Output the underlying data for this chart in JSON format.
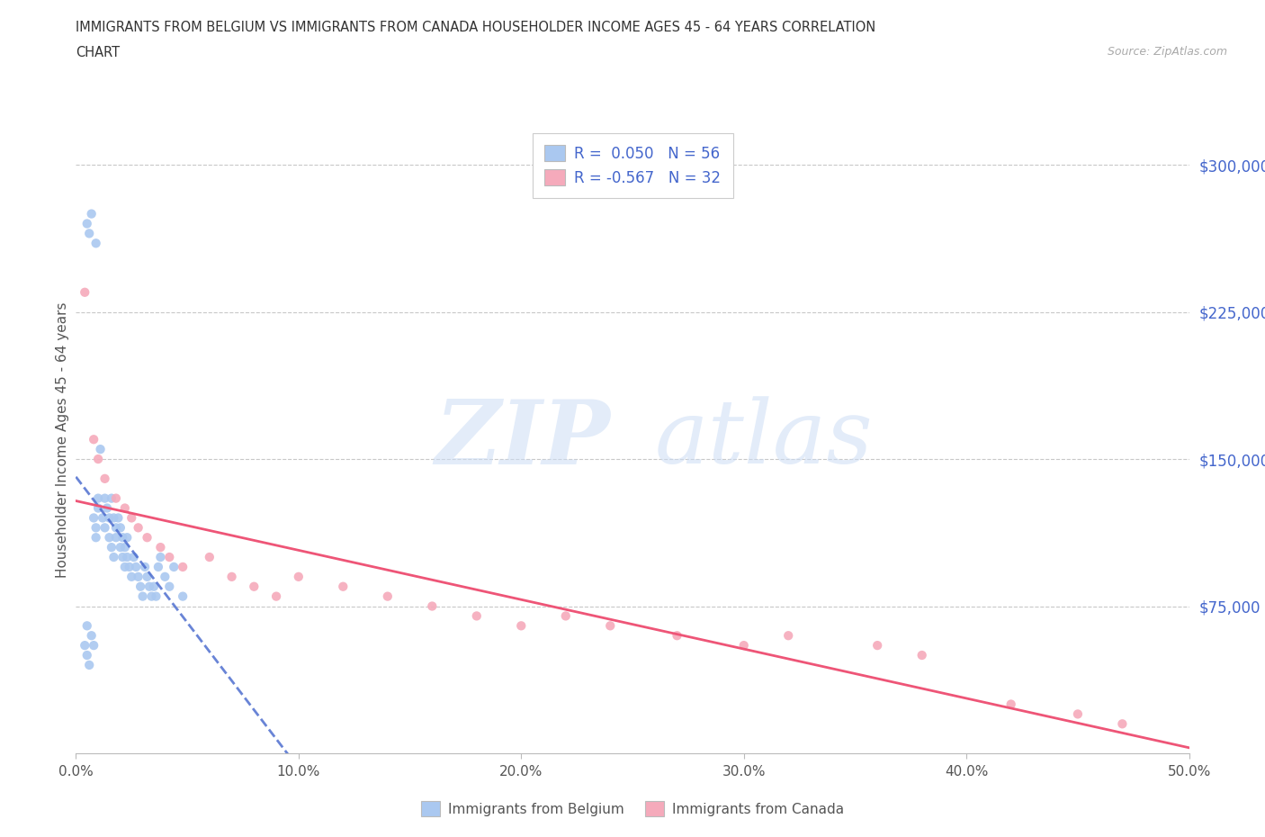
{
  "title_line1": "IMMIGRANTS FROM BELGIUM VS IMMIGRANTS FROM CANADA HOUSEHOLDER INCOME AGES 45 - 64 YEARS CORRELATION",
  "title_line2": "CHART",
  "source": "Source: ZipAtlas.com",
  "ylabel": "Householder Income Ages 45 - 64 years",
  "xlim": [
    0.0,
    0.5
  ],
  "ylim": [
    0,
    320000
  ],
  "xtick_labels": [
    "0.0%",
    "",
    "",
    "",
    "",
    "",
    "",
    "",
    "",
    "",
    "10.0%",
    "",
    "",
    "",
    "",
    "",
    "",
    "",
    "",
    "",
    "20.0%",
    "",
    "",
    "",
    "",
    "",
    "",
    "",
    "",
    "",
    "30.0%",
    "",
    "",
    "",
    "",
    "",
    "",
    "",
    "",
    "",
    "40.0%",
    "",
    "",
    "",
    "",
    "",
    "",
    "",
    "",
    "",
    "50.0%"
  ],
  "ytick_labels": [
    "$300,000",
    "$225,000",
    "$150,000",
    "$75,000"
  ],
  "ytick_vals": [
    300000,
    225000,
    150000,
    75000
  ],
  "grid_color": "#c8c8c8",
  "background_color": "#ffffff",
  "belgium_color": "#aac8f0",
  "canada_color": "#f5aabb",
  "belgium_line_color": "#4466cc",
  "canada_line_color": "#ee5577",
  "belgium_R": 0.05,
  "belgium_N": 56,
  "canada_R": -0.567,
  "canada_N": 32,
  "legend_label_belgium": "Immigrants from Belgium",
  "legend_label_canada": "Immigrants from Canada",
  "belgium_x": [
    0.004,
    0.005,
    0.005,
    0.006,
    0.007,
    0.008,
    0.008,
    0.009,
    0.009,
    0.01,
    0.01,
    0.011,
    0.012,
    0.013,
    0.013,
    0.014,
    0.015,
    0.015,
    0.016,
    0.016,
    0.017,
    0.017,
    0.018,
    0.018,
    0.019,
    0.02,
    0.02,
    0.021,
    0.021,
    0.022,
    0.022,
    0.023,
    0.023,
    0.024,
    0.025,
    0.026,
    0.027,
    0.028,
    0.029,
    0.03,
    0.031,
    0.032,
    0.033,
    0.034,
    0.035,
    0.036,
    0.037,
    0.038,
    0.04,
    0.042,
    0.044,
    0.048,
    0.005,
    0.007,
    0.006,
    0.009
  ],
  "belgium_y": [
    55000,
    65000,
    50000,
    45000,
    60000,
    55000,
    120000,
    115000,
    110000,
    130000,
    125000,
    155000,
    120000,
    130000,
    115000,
    125000,
    110000,
    120000,
    130000,
    105000,
    100000,
    120000,
    115000,
    110000,
    120000,
    115000,
    105000,
    110000,
    100000,
    105000,
    95000,
    100000,
    110000,
    95000,
    90000,
    100000,
    95000,
    90000,
    85000,
    80000,
    95000,
    90000,
    85000,
    80000,
    85000,
    80000,
    95000,
    100000,
    90000,
    85000,
    95000,
    80000,
    270000,
    275000,
    265000,
    260000
  ],
  "canada_x": [
    0.004,
    0.008,
    0.01,
    0.013,
    0.018,
    0.022,
    0.025,
    0.028,
    0.032,
    0.038,
    0.042,
    0.048,
    0.06,
    0.07,
    0.08,
    0.09,
    0.1,
    0.12,
    0.14,
    0.16,
    0.18,
    0.2,
    0.22,
    0.24,
    0.27,
    0.3,
    0.32,
    0.36,
    0.38,
    0.42,
    0.45,
    0.47
  ],
  "canada_y": [
    235000,
    160000,
    150000,
    140000,
    130000,
    125000,
    120000,
    115000,
    110000,
    105000,
    100000,
    95000,
    100000,
    90000,
    85000,
    80000,
    90000,
    85000,
    80000,
    75000,
    70000,
    65000,
    70000,
    65000,
    60000,
    55000,
    60000,
    55000,
    50000,
    25000,
    20000,
    15000
  ]
}
